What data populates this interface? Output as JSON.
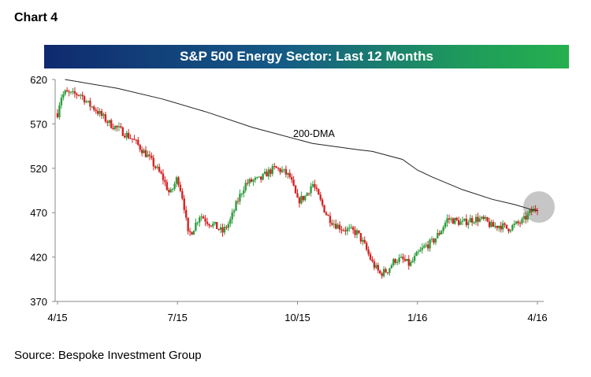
{
  "header": {
    "label": "Chart 4"
  },
  "footer": {
    "source": "Source: Bespoke Investment Group"
  },
  "chart_data": {
    "type": "candlestick",
    "title": "S&P 500 Energy Sector: Last 12 Months",
    "xlabel": "",
    "ylabel": "",
    "ylim": [
      370,
      620
    ],
    "yticks": [
      620,
      570,
      520,
      470,
      420,
      370
    ],
    "xticks": [
      "4/15",
      "7/15",
      "10/15",
      "1/16",
      "4/16"
    ],
    "grid": false,
    "colors": {
      "up": "#2e9e3e",
      "down": "#d42424",
      "ma": "#222222",
      "highlight": "#b8b8b8"
    },
    "annotation": {
      "text": "200-DMA"
    },
    "ma_200": [
      [
        0.5,
        620
      ],
      [
        4,
        610
      ],
      [
        7,
        598
      ],
      [
        10,
        583
      ],
      [
        13,
        566
      ],
      [
        17,
        548
      ],
      [
        20,
        541
      ],
      [
        21,
        539
      ],
      [
        23,
        530
      ],
      [
        24,
        518
      ],
      [
        25,
        510
      ],
      [
        27,
        496
      ],
      [
        29,
        485
      ],
      [
        30.5,
        479
      ],
      [
        31.5,
        474
      ],
      [
        32,
        472
      ]
    ],
    "price_path": [
      [
        0,
        582
      ],
      [
        0.2,
        600
      ],
      [
        0.5,
        605
      ],
      [
        1,
        603
      ],
      [
        1.5,
        604
      ],
      [
        1.8,
        598
      ],
      [
        2,
        593
      ],
      [
        2.5,
        587
      ],
      [
        3,
        578
      ],
      [
        3.5,
        570
      ],
      [
        4,
        565
      ],
      [
        5,
        553
      ],
      [
        6,
        534
      ],
      [
        7,
        510
      ],
      [
        7.5,
        490
      ],
      [
        8,
        510
      ],
      [
        8.4,
        483
      ],
      [
        8.7,
        445
      ],
      [
        9,
        450
      ],
      [
        9.5,
        468
      ],
      [
        10,
        460
      ],
      [
        10.5,
        455
      ],
      [
        11,
        448
      ],
      [
        11.5,
        460
      ],
      [
        12,
        483
      ],
      [
        12.5,
        502
      ],
      [
        13,
        506
      ],
      [
        13.5,
        507
      ],
      [
        14,
        515
      ],
      [
        14.5,
        520
      ],
      [
        15,
        517
      ],
      [
        15.5,
        510
      ],
      [
        16,
        483
      ],
      [
        16.5,
        488
      ],
      [
        17,
        503
      ],
      [
        17.5,
        484
      ],
      [
        18,
        466
      ],
      [
        18.5,
        457
      ],
      [
        19,
        452
      ],
      [
        19.5,
        450
      ],
      [
        20,
        447
      ],
      [
        20.5,
        432
      ],
      [
        21,
        413
      ],
      [
        21.5,
        401
      ],
      [
        22,
        405
      ],
      [
        22.5,
        417
      ],
      [
        23,
        417
      ],
      [
        23.5,
        411
      ],
      [
        24,
        423
      ],
      [
        24.5,
        432
      ],
      [
        25,
        437
      ],
      [
        25.5,
        448
      ],
      [
        26,
        463
      ],
      [
        26.5,
        461
      ],
      [
        27,
        458
      ],
      [
        27.5,
        462
      ],
      [
        28,
        463
      ],
      [
        28.5,
        461
      ],
      [
        29,
        454
      ],
      [
        29.5,
        456
      ],
      [
        30,
        452
      ],
      [
        30.5,
        456
      ],
      [
        31,
        460
      ],
      [
        31.5,
        470
      ],
      [
        32,
        476
      ]
    ]
  }
}
